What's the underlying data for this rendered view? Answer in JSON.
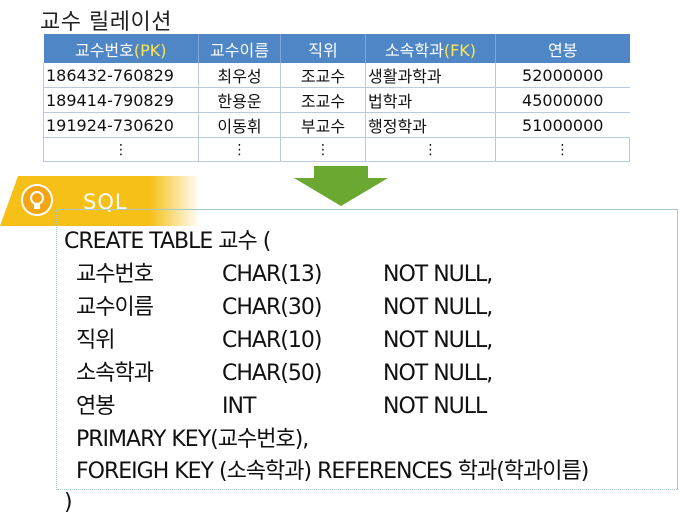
{
  "relation": {
    "title": "교수 릴레이션",
    "columns": [
      {
        "label": "교수번호",
        "key": "(PK)"
      },
      {
        "label": "교수이름",
        "key": ""
      },
      {
        "label": "직위",
        "key": ""
      },
      {
        "label": "소속학과",
        "key": "(FK)"
      },
      {
        "label": "연봉",
        "key": ""
      }
    ],
    "rows": [
      [
        "186432-760829",
        "최우성",
        "조교수",
        "생활과학과",
        "52000000"
      ],
      [
        "189414-790829",
        "한용운",
        "조교수",
        "법학과",
        "45000000"
      ],
      [
        "191924-730620",
        "이동휘",
        "부교수",
        "행정학과",
        "51000000"
      ]
    ],
    "ellipsis": "⋮"
  },
  "sql": {
    "label": "SQL",
    "create_line": "CREATE TABLE 교수 (",
    "fields": [
      {
        "name": "교수번호",
        "type": "CHAR(13)",
        "constraint": "NOT NULL,"
      },
      {
        "name": "교수이름",
        "type": "CHAR(30)",
        "constraint": "NOT NULL,"
      },
      {
        "name": "직위",
        "type": "CHAR(10)",
        "constraint": "NOT NULL,"
      },
      {
        "name": "소속학과",
        "type": "CHAR(50)",
        "constraint": "NOT NULL,"
      },
      {
        "name": "연봉",
        "type": "INT",
        "constraint": "NOT NULL"
      }
    ],
    "primary_key_line": "PRIMARY KEY(교수번호),",
    "foreign_key_line": "FOREIGH KEY (소속학과) REFERENCES 학과(학과이름)",
    "close_line": ")"
  },
  "colors": {
    "header_bg": "#4f86c6",
    "key_text": "#ffe64d",
    "arrow": "#6aa832",
    "tab": "#f6c016"
  }
}
